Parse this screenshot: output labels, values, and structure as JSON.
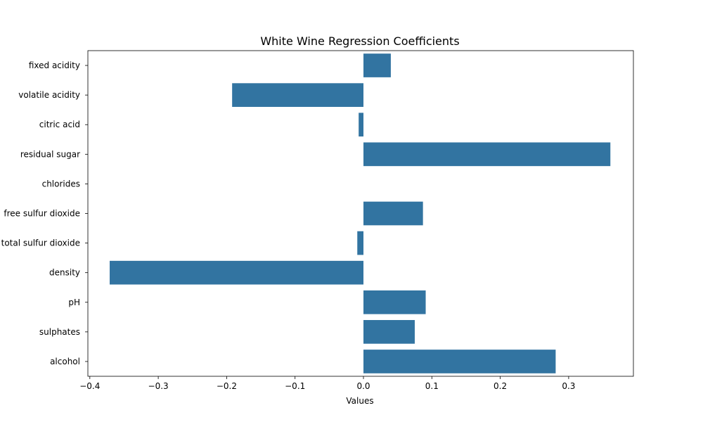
{
  "chart_data": {
    "type": "bar",
    "orientation": "horizontal",
    "title": "White Wine Regression Coefficients",
    "xlabel": "Values",
    "ylabel": "",
    "categories": [
      "fixed acidity",
      "volatile acidity",
      "citric acid",
      "residual sugar",
      "chlorides",
      "free sulfur dioxide",
      "total sulfur dioxide",
      "density",
      "pH",
      "sulphates",
      "alcohol"
    ],
    "values": [
      0.04,
      -0.192,
      -0.007,
      0.361,
      0.0,
      0.087,
      -0.009,
      -0.371,
      0.091,
      0.075,
      0.281
    ],
    "xlim": [
      -0.4,
      0.4
    ],
    "xticks": [
      -0.4,
      -0.3,
      -0.2,
      -0.1,
      0.0,
      0.1,
      0.2,
      0.3
    ],
    "xtick_labels": [
      "−0.4",
      "−0.3",
      "−0.2",
      "−0.1",
      "0.0",
      "0.1",
      "0.2",
      "0.3"
    ],
    "bar_color": "#3274a1",
    "grid": false,
    "legend": "none"
  }
}
